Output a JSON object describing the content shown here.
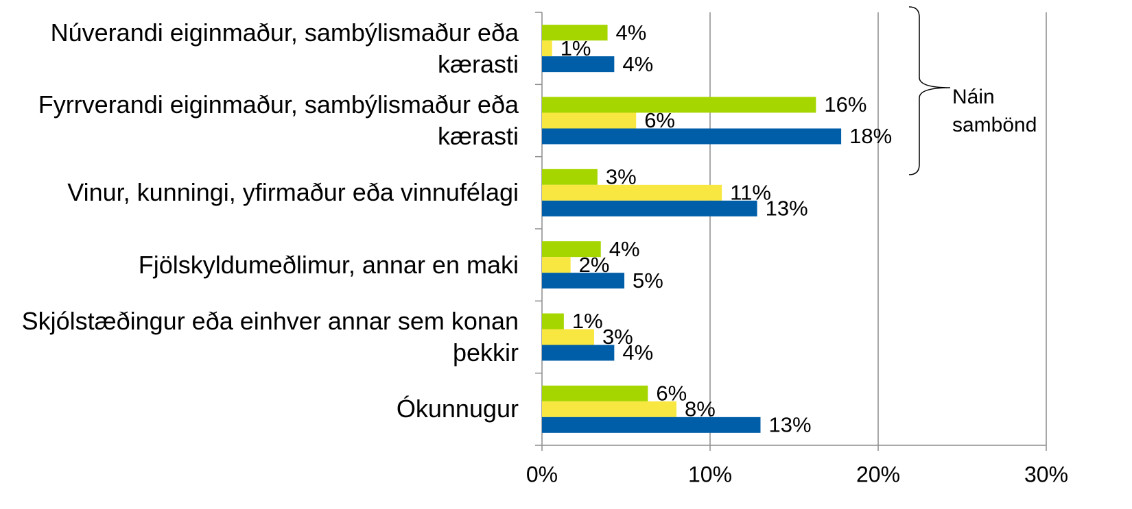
{
  "chart_data": {
    "type": "bar",
    "orientation": "horizontal",
    "categories": [
      "Núverandi eiginmaður, sambýlismaður eða kærasti",
      "Fyrrverandi eiginmaður, sambýlismaður eða kærasti",
      "Vinur, kunningi, yfirmaður eða vinnufélagi",
      "Fjölskyldumeðlimur, annar en maki",
      "Skjólstæðingur eða einhver annar sem konan þekkir",
      "Ókunnugur"
    ],
    "series": [
      {
        "color": "#a6d600",
        "values": [
          3.9,
          16.3,
          3.3,
          3.5,
          1.3,
          6.3
        ],
        "value_labels": [
          "4%",
          "16%",
          "3%",
          "4%",
          "1%",
          "6%"
        ]
      },
      {
        "color": "#f8e741",
        "values": [
          0.6,
          5.6,
          10.7,
          1.7,
          3.1,
          8.0
        ],
        "value_labels": [
          "1%",
          "6%",
          "11%",
          "2%",
          "3%",
          "8%"
        ]
      },
      {
        "color": "#005ea8",
        "values": [
          4.3,
          17.8,
          12.8,
          4.9,
          4.3,
          13.0
        ],
        "value_labels": [
          "4%",
          "18%",
          "13%",
          "5%",
          "4%",
          "13%"
        ]
      }
    ],
    "xlim": [
      0,
      30
    ],
    "xticks": [
      {
        "value": 0,
        "label": "0%"
      },
      {
        "value": 10,
        "label": "10%"
      },
      {
        "value": 20,
        "label": "20%"
      },
      {
        "value": 30,
        "label": "30%"
      }
    ],
    "grid": true,
    "annotation": [
      "Náin",
      "sambönd"
    ]
  }
}
